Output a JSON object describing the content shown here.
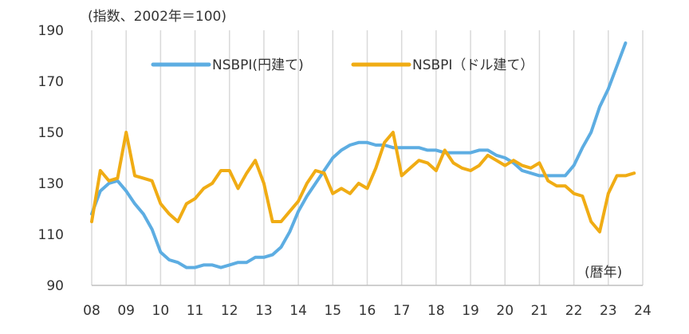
{
  "chart_data": {
    "type": "line",
    "ylabel": "(指数、2002年＝100)",
    "xlabel": "(暦年)",
    "xticks": [
      "08",
      "09",
      "10",
      "11",
      "12",
      "13",
      "14",
      "15",
      "16",
      "17",
      "18",
      "19",
      "20",
      "21",
      "22",
      "23",
      "24"
    ],
    "yticks": [
      90,
      110,
      130,
      150,
      170,
      190
    ],
    "ylim": [
      90,
      190
    ],
    "xlim": [
      2008,
      2024
    ],
    "grid": "vertical",
    "legend_position": "top-center",
    "series": [
      {
        "name": "NSBPI(円建て)",
        "color": "#5dade2",
        "points": [
          [
            2008.0,
            118
          ],
          [
            2008.25,
            127
          ],
          [
            2008.5,
            130
          ],
          [
            2008.75,
            131
          ],
          [
            2009.0,
            127
          ],
          [
            2009.25,
            122
          ],
          [
            2009.5,
            118
          ],
          [
            2009.75,
            112
          ],
          [
            2010.0,
            103
          ],
          [
            2010.25,
            100
          ],
          [
            2010.5,
            99
          ],
          [
            2010.75,
            97
          ],
          [
            2011.0,
            97
          ],
          [
            2011.25,
            98
          ],
          [
            2011.5,
            98
          ],
          [
            2011.75,
            97
          ],
          [
            2012.0,
            98
          ],
          [
            2012.25,
            99
          ],
          [
            2012.5,
            99
          ],
          [
            2012.75,
            101
          ],
          [
            2013.0,
            101
          ],
          [
            2013.25,
            102
          ],
          [
            2013.5,
            105
          ],
          [
            2013.75,
            111
          ],
          [
            2014.0,
            119
          ],
          [
            2014.25,
            125
          ],
          [
            2014.5,
            130
          ],
          [
            2014.75,
            135
          ],
          [
            2015.0,
            140
          ],
          [
            2015.25,
            143
          ],
          [
            2015.5,
            145
          ],
          [
            2015.75,
            146
          ],
          [
            2016.0,
            146
          ],
          [
            2016.25,
            145
          ],
          [
            2016.5,
            145
          ],
          [
            2016.75,
            144
          ],
          [
            2017.0,
            144
          ],
          [
            2017.25,
            144
          ],
          [
            2017.5,
            144
          ],
          [
            2017.75,
            143
          ],
          [
            2018.0,
            143
          ],
          [
            2018.25,
            142
          ],
          [
            2018.5,
            142
          ],
          [
            2018.75,
            142
          ],
          [
            2019.0,
            142
          ],
          [
            2019.25,
            143
          ],
          [
            2019.5,
            143
          ],
          [
            2019.75,
            141
          ],
          [
            2020.0,
            140
          ],
          [
            2020.25,
            138
          ],
          [
            2020.5,
            135
          ],
          [
            2020.75,
            134
          ],
          [
            2021.0,
            133
          ],
          [
            2021.25,
            133
          ],
          [
            2021.5,
            133
          ],
          [
            2021.75,
            133
          ],
          [
            2022.0,
            137
          ],
          [
            2022.25,
            144
          ],
          [
            2022.5,
            150
          ],
          [
            2022.75,
            160
          ],
          [
            2023.0,
            167
          ],
          [
            2023.25,
            176
          ],
          [
            2023.5,
            185
          ]
        ]
      },
      {
        "name": "NSBPI（ドル建て）",
        "color": "#f0ac14",
        "points": [
          [
            2008.0,
            115
          ],
          [
            2008.25,
            135
          ],
          [
            2008.5,
            131
          ],
          [
            2008.75,
            132
          ],
          [
            2009.0,
            150
          ],
          [
            2009.25,
            133
          ],
          [
            2009.5,
            132
          ],
          [
            2009.75,
            131
          ],
          [
            2010.0,
            122
          ],
          [
            2010.25,
            118
          ],
          [
            2010.5,
            115
          ],
          [
            2010.75,
            122
          ],
          [
            2011.0,
            124
          ],
          [
            2011.25,
            128
          ],
          [
            2011.5,
            130
          ],
          [
            2011.75,
            135
          ],
          [
            2012.0,
            135
          ],
          [
            2012.25,
            128
          ],
          [
            2012.5,
            134
          ],
          [
            2012.75,
            139
          ],
          [
            2013.0,
            130
          ],
          [
            2013.25,
            115
          ],
          [
            2013.5,
            115
          ],
          [
            2013.75,
            119
          ],
          [
            2014.0,
            123
          ],
          [
            2014.25,
            130
          ],
          [
            2014.5,
            135
          ],
          [
            2014.75,
            134
          ],
          [
            2015.0,
            126
          ],
          [
            2015.25,
            128
          ],
          [
            2015.5,
            126
          ],
          [
            2015.75,
            130
          ],
          [
            2016.0,
            128
          ],
          [
            2016.25,
            136
          ],
          [
            2016.5,
            146
          ],
          [
            2016.75,
            150
          ],
          [
            2017.0,
            133
          ],
          [
            2017.25,
            136
          ],
          [
            2017.5,
            139
          ],
          [
            2017.75,
            138
          ],
          [
            2018.0,
            135
          ],
          [
            2018.25,
            143
          ],
          [
            2018.5,
            138
          ],
          [
            2018.75,
            136
          ],
          [
            2019.0,
            135
          ],
          [
            2019.25,
            137
          ],
          [
            2019.5,
            141
          ],
          [
            2019.75,
            139
          ],
          [
            2020.0,
            137
          ],
          [
            2020.25,
            139
          ],
          [
            2020.5,
            137
          ],
          [
            2020.75,
            136
          ],
          [
            2021.0,
            138
          ],
          [
            2021.25,
            131
          ],
          [
            2021.5,
            129
          ],
          [
            2021.75,
            129
          ],
          [
            2022.0,
            126
          ],
          [
            2022.25,
            125
          ],
          [
            2022.5,
            115
          ],
          [
            2022.75,
            111
          ],
          [
            2023.0,
            126
          ],
          [
            2023.25,
            133
          ],
          [
            2023.5,
            133
          ],
          [
            2023.75,
            134
          ]
        ]
      }
    ]
  }
}
